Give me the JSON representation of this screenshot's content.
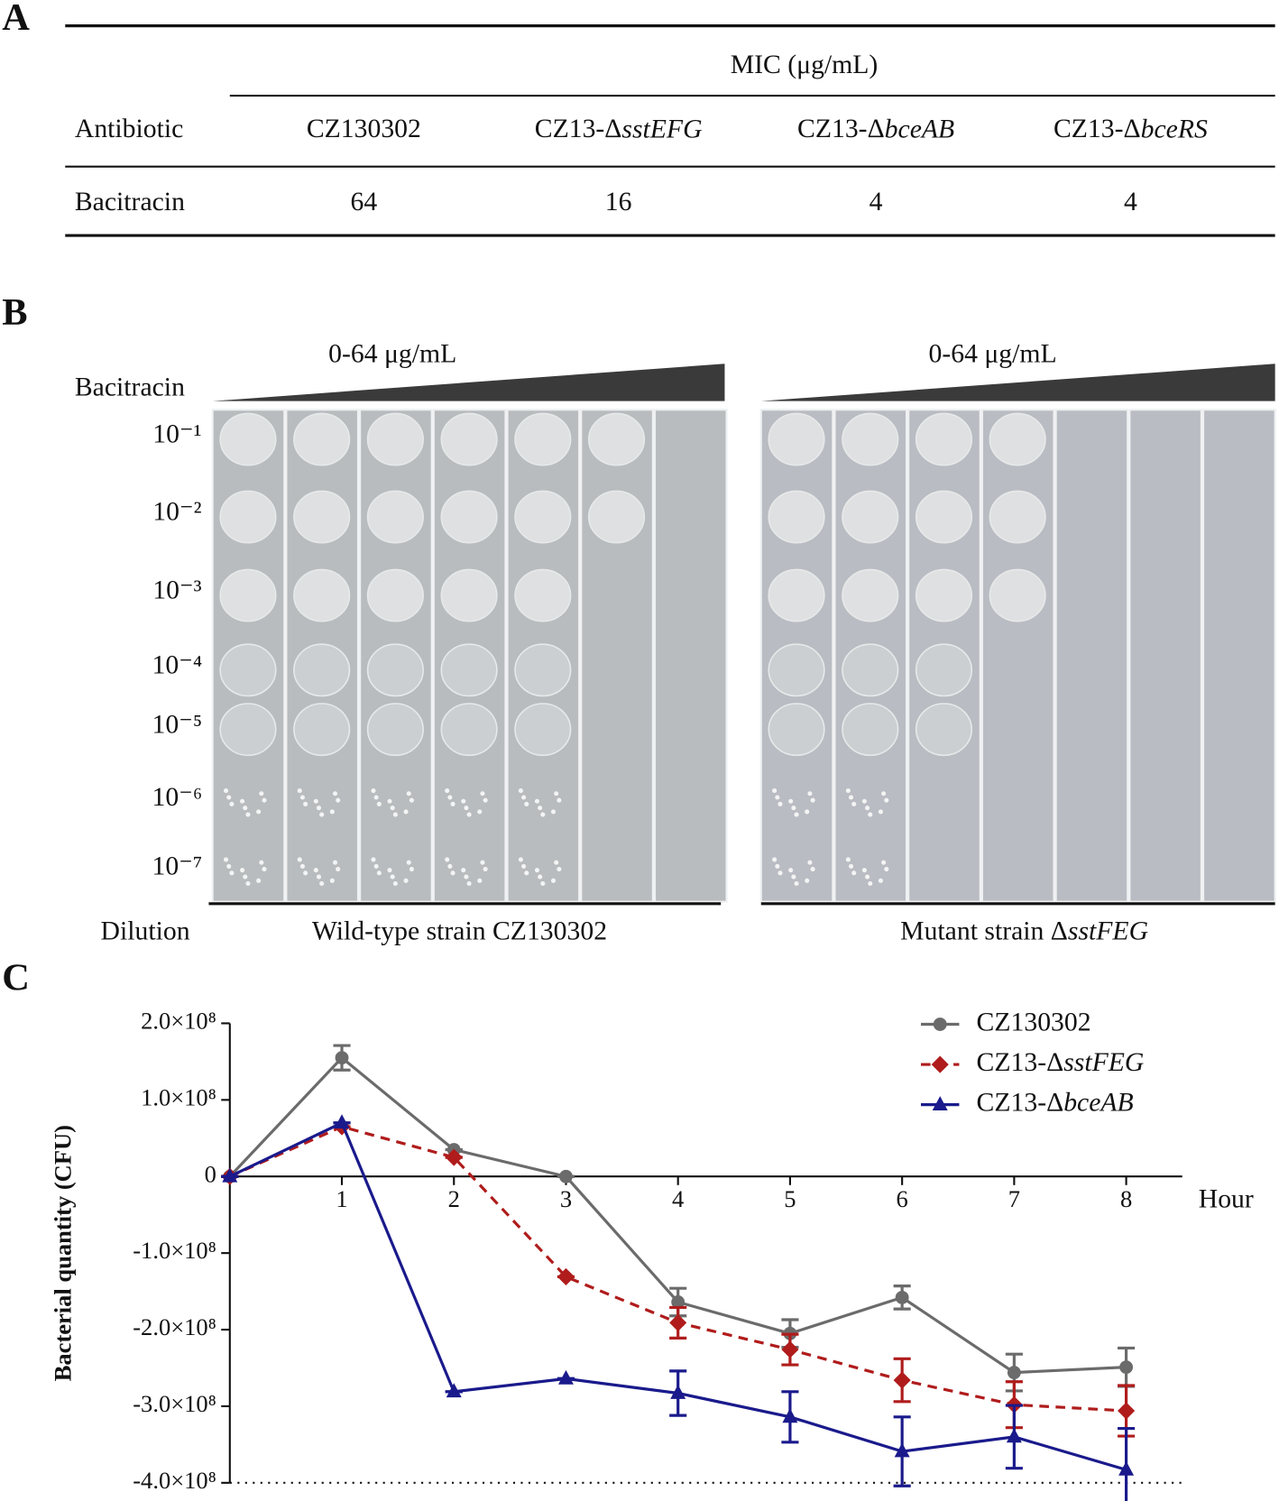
{
  "panel_a": {
    "letter": "A",
    "header": "MIC (μg/mL)",
    "columns": [
      "Antibiotic",
      "CZ130302",
      "CZ13-ΔsstEFG",
      "CZ13-ΔbceAB",
      "CZ13-ΔbceRS"
    ],
    "rows": [
      [
        "Bacitracin",
        "64",
        "16",
        "4",
        "4"
      ]
    ]
  },
  "panel_b": {
    "letter": "B",
    "row_title": "Bacitracin",
    "gradient_labels": [
      "0-64 μg/mL",
      "0-64 μg/mL"
    ],
    "dilutions": [
      "10⁻¹",
      "10⁻²",
      "10⁻³",
      "10⁻⁴",
      "10⁻⁵",
      "10⁻⁶",
      "10⁻⁷"
    ],
    "footer_title": "Dilution",
    "strains": [
      "Wild-type strain CZ130302",
      "Mutant strain ΔsstFEG"
    ]
  },
  "panel_c_letter": "C",
  "chart_data": {
    "type": "line",
    "y_label": "Bacterial quantity (CFU)",
    "x_label": "Hour",
    "x": [
      0,
      1,
      2,
      3,
      4,
      5,
      6,
      7,
      8
    ],
    "xlim": [
      0,
      8.5
    ],
    "xticks": [
      1,
      2,
      3,
      4,
      5,
      6,
      7,
      8
    ],
    "ylim": [
      -400000000,
      200000000
    ],
    "yticks": [
      {
        "value": 200000000,
        "label": "2.0×10⁸"
      },
      {
        "value": 100000000,
        "label": "1.0×10⁸"
      },
      0,
      {
        "value": -100000000,
        "label": "-1.0×10⁸"
      },
      {
        "value": -200000000,
        "label": "-2.0×10⁸"
      },
      {
        "value": -300000000,
        "label": "-3.0×10⁸"
      },
      {
        "value": -400000000,
        "label": "-4.0×10⁸"
      }
    ],
    "legend": "top-right",
    "series": [
      {
        "name": "CZ130302",
        "color": "#6b6b6b",
        "marker": "circle",
        "dash": false,
        "values": [
          0,
          155000000,
          35000000,
          0,
          -164000000,
          -205000000,
          -158000000,
          -256000000,
          -249000000
        ],
        "errors": [
          0,
          16000000,
          0,
          0,
          18000000,
          18000000,
          15000000,
          24000000,
          25000000
        ]
      },
      {
        "name": "CZ13-ΔsstFEG",
        "color": "#b01c1c",
        "marker": "diamond",
        "dash": true,
        "values": [
          0,
          65000000,
          25000000,
          -131000000,
          -191000000,
          -226000000,
          -266000000,
          -298000000,
          -306000000
        ],
        "errors": [
          0,
          0,
          0,
          0,
          20000000,
          20000000,
          28000000,
          30000000,
          33000000
        ]
      },
      {
        "name": "CZ13-ΔbceAB",
        "color": "#1a1a8c",
        "marker": "triangle",
        "dash": false,
        "values": [
          0,
          70000000,
          -281000000,
          -264000000,
          -283000000,
          -314000000,
          -359000000,
          -340000000,
          -383000000
        ],
        "errors": [
          0,
          0,
          0,
          0,
          29000000,
          33000000,
          45000000,
          41000000,
          54000000
        ]
      }
    ]
  }
}
